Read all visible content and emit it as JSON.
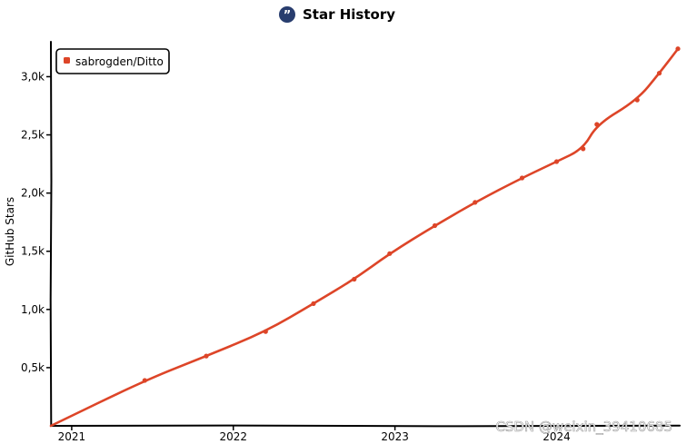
{
  "chart_data": {
    "type": "line",
    "title": "Star History",
    "ylabel": "GitHub Stars",
    "xlabel": "",
    "ylim": [
      0,
      3300
    ],
    "yticks": [
      {
        "value": 500,
        "label": "0,5k"
      },
      {
        "value": 1000,
        "label": "1,0k"
      },
      {
        "value": 1500,
        "label": "1,5k"
      },
      {
        "value": 2000,
        "label": "2,0k"
      },
      {
        "value": 2500,
        "label": "2,5k"
      },
      {
        "value": 3000,
        "label": "3,0k"
      }
    ],
    "xlim": [
      "2020-11-15",
      "2024-10-01"
    ],
    "xticks": [
      {
        "value": "2021-01-01",
        "label": "2021"
      },
      {
        "value": "2022-01-01",
        "label": "2022"
      },
      {
        "value": "2023-01-01",
        "label": "2023"
      },
      {
        "value": "2024-01-01",
        "label": "2024"
      }
    ],
    "grid": false,
    "legend_position": "top-left",
    "series": [
      {
        "name": "sabrogden/Ditto",
        "color": "#dd4528",
        "points": [
          {
            "x": "2020-11-15",
            "y": 0
          },
          {
            "x": "2021-06-15",
            "y": 390
          },
          {
            "x": "2021-11-01",
            "y": 600
          },
          {
            "x": "2022-03-15",
            "y": 810
          },
          {
            "x": "2022-07-01",
            "y": 1050
          },
          {
            "x": "2022-10-01",
            "y": 1260
          },
          {
            "x": "2022-12-20",
            "y": 1480
          },
          {
            "x": "2023-04-01",
            "y": 1720
          },
          {
            "x": "2023-07-01",
            "y": 1920
          },
          {
            "x": "2023-10-15",
            "y": 2130
          },
          {
            "x": "2024-01-01",
            "y": 2270
          },
          {
            "x": "2024-03-01",
            "y": 2380
          },
          {
            "x": "2024-04-01",
            "y": 2590
          },
          {
            "x": "2024-07-01",
            "y": 2800
          },
          {
            "x": "2024-08-20",
            "y": 3030
          },
          {
            "x": "2024-10-01",
            "y": 3240
          }
        ]
      }
    ],
    "colors": {
      "line": "#dd4528",
      "title_icon": "#283d6e"
    },
    "title_icon": "quote-icon"
  },
  "watermark": "CSDN @weixin_39410685"
}
